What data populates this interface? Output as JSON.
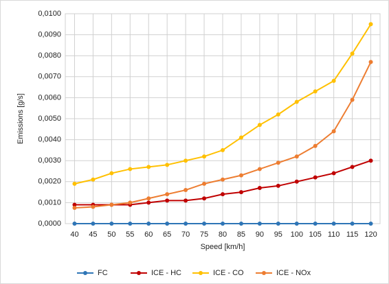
{
  "chart_data": {
    "type": "line",
    "y_label": "Emissions [g/s]",
    "x_label": "Speed [km/h]",
    "x": [
      40,
      45,
      50,
      55,
      60,
      65,
      70,
      75,
      80,
      85,
      90,
      95,
      100,
      105,
      110,
      115,
      120
    ],
    "xlim": [
      37.5,
      122.5
    ],
    "xticks": [
      40,
      45,
      50,
      55,
      60,
      65,
      70,
      75,
      80,
      85,
      90,
      95,
      100,
      105,
      110,
      115,
      120
    ],
    "ylim": [
      0,
      0.01
    ],
    "yticks": [
      {
        "value": 0,
        "label": "0,0000"
      },
      {
        "value": 0.001,
        "label": "0,0010"
      },
      {
        "value": 0.002,
        "label": "0,0020"
      },
      {
        "value": 0.003,
        "label": "0,0030"
      },
      {
        "value": 0.004,
        "label": "0,0040"
      },
      {
        "value": 0.005,
        "label": "0,0050"
      },
      {
        "value": 0.006,
        "label": "0,0060"
      },
      {
        "value": 0.007,
        "label": "0,0070"
      },
      {
        "value": 0.008,
        "label": "0,0080"
      },
      {
        "value": 0.009,
        "label": "0,0090"
      },
      {
        "value": 0.01,
        "label": "0,0100"
      }
    ],
    "grid": true,
    "legend": "bottom",
    "series": [
      {
        "name": "FC",
        "color": "#2e75b6",
        "values": [
          0,
          0,
          0,
          0,
          0,
          0,
          0,
          0,
          0,
          0,
          0,
          0,
          0,
          0,
          0,
          0,
          0
        ]
      },
      {
        "name": "ICE - HC",
        "color": "#c00000",
        "values": [
          0.0009,
          0.0009,
          0.0009,
          0.0009,
          0.001,
          0.0011,
          0.0011,
          0.0012,
          0.0014,
          0.0015,
          0.0017,
          0.0018,
          0.002,
          0.0022,
          0.0024,
          0.0027,
          0.003
        ]
      },
      {
        "name": "ICE - CO",
        "color": "#ffc000",
        "values": [
          0.0019,
          0.0021,
          0.0024,
          0.0026,
          0.0027,
          0.0028,
          0.003,
          0.0032,
          0.0035,
          0.0041,
          0.0047,
          0.0052,
          0.0058,
          0.0063,
          0.0068,
          0.0081,
          0.0095
        ]
      },
      {
        "name": "ICE - NOx",
        "color": "#ed7d31",
        "values": [
          0.00075,
          0.0008,
          0.0009,
          0.001,
          0.0012,
          0.0014,
          0.0016,
          0.0019,
          0.0021,
          0.0023,
          0.0026,
          0.0029,
          0.0032,
          0.0037,
          0.0044,
          0.0059,
          0.0077
        ]
      }
    ]
  }
}
